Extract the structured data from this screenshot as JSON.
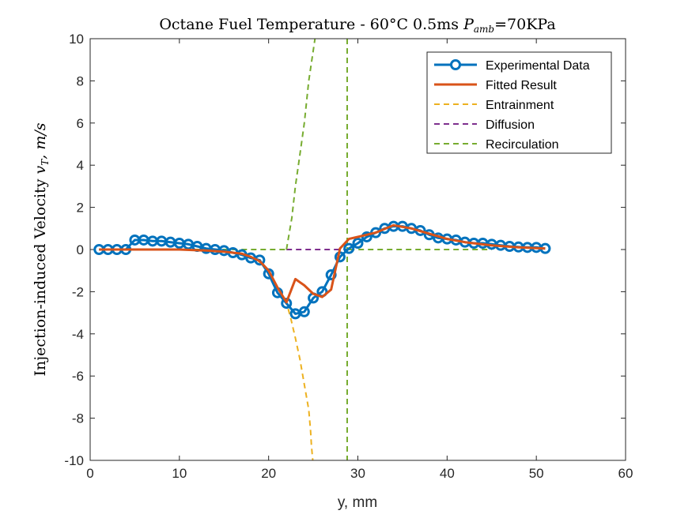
{
  "chart_data": {
    "type": "line",
    "title": {
      "prefix": "Octane Fuel Temperature - 60°C 0.5ms ",
      "p": "P",
      "sub": "amb",
      "suffix": "=70KPa"
    },
    "xlabel": "y, mm",
    "ylabel": {
      "prefix": "Injection-induced Velocity ",
      "v": "v",
      "sub": "T",
      "suffix": ", m/s"
    },
    "xlim": [
      0,
      60
    ],
    "ylim": [
      -10,
      10
    ],
    "xticks": [
      0,
      10,
      20,
      30,
      40,
      50,
      60
    ],
    "yticks": [
      -10,
      -8,
      -6,
      -4,
      -2,
      0,
      2,
      4,
      6,
      8,
      10
    ],
    "grid": false,
    "legend_position": "top-right",
    "series": [
      {
        "name": "Experimental Data",
        "color": "#0072BD",
        "style": "solid-circle-markers",
        "x": [
          1,
          2,
          3,
          4,
          5,
          6,
          7,
          8,
          9,
          10,
          11,
          12,
          13,
          14,
          15,
          16,
          17,
          18,
          19,
          20,
          21,
          22,
          23,
          24,
          25,
          26,
          27,
          28,
          29,
          30,
          31,
          32,
          33,
          34,
          35,
          36,
          37,
          38,
          39,
          40,
          41,
          42,
          43,
          44,
          45,
          46,
          47,
          48,
          49,
          50,
          51
        ],
        "y": [
          0.0,
          0.0,
          0.0,
          0.0,
          0.45,
          0.45,
          0.4,
          0.4,
          0.35,
          0.3,
          0.25,
          0.15,
          0.05,
          0.0,
          -0.05,
          -0.15,
          -0.25,
          -0.4,
          -0.5,
          -1.15,
          -2.05,
          -2.55,
          -3.05,
          -2.95,
          -2.3,
          -2.0,
          -1.2,
          -0.35,
          0.05,
          0.3,
          0.6,
          0.8,
          1.0,
          1.1,
          1.1,
          1.0,
          0.9,
          0.7,
          0.55,
          0.5,
          0.45,
          0.35,
          0.3,
          0.3,
          0.25,
          0.2,
          0.15,
          0.12,
          0.1,
          0.1,
          0.05
        ]
      },
      {
        "name": "Fitted Result",
        "color": "#D95319",
        "style": "solid",
        "x": [
          1,
          5,
          10,
          13,
          15,
          17,
          18,
          19,
          20,
          21,
          22,
          23,
          24,
          25,
          26,
          27,
          28,
          29,
          30,
          32,
          34,
          36,
          38,
          40,
          42,
          45,
          48,
          51
        ],
        "y": [
          0,
          0,
          0,
          -0.05,
          -0.1,
          -0.2,
          -0.35,
          -0.55,
          -1.0,
          -1.8,
          -2.5,
          -1.4,
          -1.7,
          -2.1,
          -2.25,
          -1.9,
          0.05,
          0.5,
          0.6,
          0.8,
          1.15,
          1.0,
          0.75,
          0.5,
          0.35,
          0.2,
          0.1,
          0.05
        ]
      },
      {
        "name": "Entrainment",
        "color": "#EDB120",
        "style": "dashed",
        "x": [
          1,
          5,
          10,
          13,
          15,
          17,
          18,
          19,
          20,
          21,
          22,
          22.5,
          23,
          23.5,
          24,
          24.5,
          24.7,
          24.8,
          24.95
        ],
        "y": [
          0,
          0,
          0,
          -0.05,
          -0.1,
          -0.2,
          -0.35,
          -0.6,
          -1.0,
          -1.8,
          -2.5,
          -3.3,
          -4.2,
          -5.2,
          -6.4,
          -7.6,
          -8.6,
          -9.3,
          -10
        ]
      },
      {
        "name": "Diffusion",
        "color": "#7E2F8E",
        "style": "dashed",
        "x": [
          22,
          29
        ],
        "y": [
          0,
          0
        ]
      },
      {
        "name": "Recirculation",
        "color": "#77AC30",
        "style": "dashed",
        "segments": [
          {
            "x": [
              1,
              22
            ],
            "y": [
              0,
              0
            ]
          },
          {
            "x": [
              22,
              22.6,
              23,
              23.5,
              24,
              24.5,
              25.2
            ],
            "y": [
              0,
              1.5,
              3.0,
              4.5,
              6.0,
              8.0,
              10
            ]
          },
          {
            "x": [
              28.8,
              28.8
            ],
            "y": [
              10,
              -10
            ]
          },
          {
            "x": [
              29,
              45
            ],
            "y": [
              0,
              0
            ]
          }
        ]
      }
    ]
  }
}
